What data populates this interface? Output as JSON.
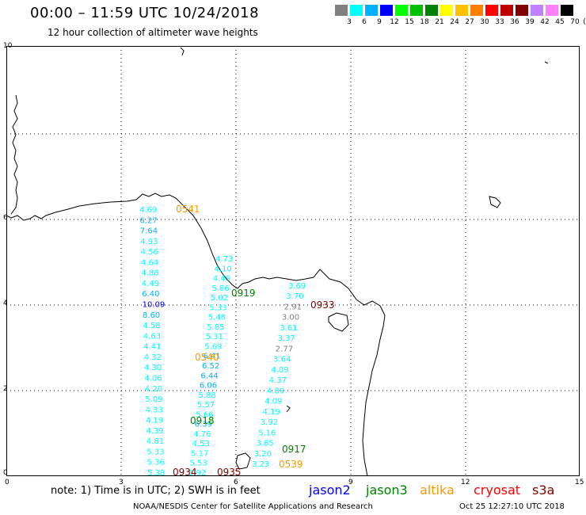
{
  "header": {
    "title": "00:00 – 11:59 UTC 10/24/2018",
    "subtitle": "12 hour collection of altimeter wave heights"
  },
  "scale": {
    "unit": "(ft)",
    "items": [
      {
        "label": "3",
        "color": "#808080"
      },
      {
        "label": "6",
        "color": "#00ffff"
      },
      {
        "label": "9",
        "color": "#00b0ff"
      },
      {
        "label": "12",
        "color": "#0000ff"
      },
      {
        "label": "15",
        "color": "#00ff00"
      },
      {
        "label": "18",
        "color": "#00c000"
      },
      {
        "label": "21",
        "color": "#008000"
      },
      {
        "label": "24",
        "color": "#ffff00"
      },
      {
        "label": "27",
        "color": "#ffc000"
      },
      {
        "label": "30",
        "color": "#ff8000"
      },
      {
        "label": "33",
        "color": "#ff0000"
      },
      {
        "label": "36",
        "color": "#c00000"
      },
      {
        "label": "39",
        "color": "#800000"
      },
      {
        "label": "42",
        "color": "#c080ff"
      },
      {
        "label": "45",
        "color": "#ff80ff"
      },
      {
        "label": "70",
        "color": "#000000"
      }
    ]
  },
  "axes": {
    "x_ticks": [
      "0",
      "3",
      "6",
      "9",
      "12",
      "15"
    ],
    "y_ticks": [
      "0",
      "2",
      "4",
      "6",
      "10"
    ]
  },
  "tracks": {
    "track1": [
      "4.69",
      "6.27",
      "7.64",
      "4.93",
      "4.56",
      "4.64",
      "4.88",
      "4.49",
      "6.40",
      "10.09",
      "8.60",
      "4.58",
      "4.63",
      "4.41",
      "4.32",
      "4.30",
      "4.06",
      "4.20",
      "5.09",
      "4.33",
      "4.19",
      "4.39",
      "4.81",
      "5.33",
      "5.36",
      "5.38"
    ],
    "track2": [
      "4.73",
      "4.10",
      "4.49",
      "5.86",
      "5.02",
      "5.33",
      "5.48",
      "5.85",
      "5.31",
      "5.69",
      "6.41",
      "6.52",
      "6.44",
      "6.06",
      "5.88",
      "5.57",
      "5.66",
      "6.39",
      "4.76",
      "4.53",
      "5.17",
      "5.53",
      "5.92"
    ],
    "track3": [
      "3.69",
      "3.70",
      "2.91",
      "3.00",
      "3.61",
      "3.37",
      "2.77",
      "3.64",
      "4.09",
      "4.37",
      "4.89",
      "4.09",
      "4.19",
      "3.92",
      "5.16",
      "3.85",
      "3.20",
      "3.23"
    ]
  },
  "passes": [
    {
      "label": "0541",
      "color": "#ff9900"
    },
    {
      "label": "0919",
      "color": "#008000"
    },
    {
      "label": "0933",
      "color": "#800000"
    },
    {
      "label": "0540",
      "color": "#ff9900"
    },
    {
      "label": "0918",
      "color": "#008000"
    },
    {
      "label": "0934",
      "color": "#800000"
    },
    {
      "label": "0935",
      "color": "#800000"
    },
    {
      "label": "0917",
      "color": "#008000"
    },
    {
      "label": "0539",
      "color": "#ff9900"
    }
  ],
  "footer": {
    "note": "note: 1) Time is in UTC; 2) SWH is in feet",
    "legend": [
      {
        "label": "jason2",
        "color": "#0000ff"
      },
      {
        "label": "jason3",
        "color": "#008000"
      },
      {
        "label": "altika",
        "color": "#ff9900"
      },
      {
        "label": "cryosat",
        "color": "#ff0000"
      },
      {
        "label": "s3a",
        "color": "#800000"
      }
    ],
    "credit": "NOAA/NESDIS Center for Satellite Applications and Research",
    "timestamp": "Oct 25 12:27:10 UTC 2018"
  }
}
